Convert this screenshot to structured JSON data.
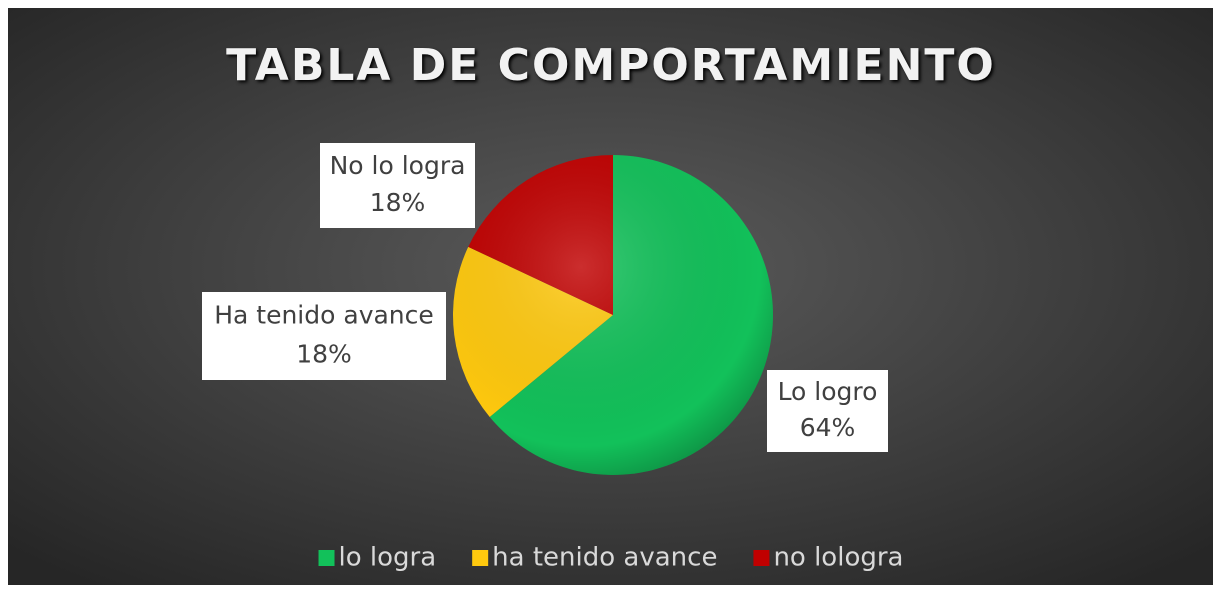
{
  "chart_data": {
    "type": "pie",
    "title": "TABLA DE COMPORTAMIENTO",
    "categories": [
      "lo logra",
      "ha tenido avance",
      "no lologra"
    ],
    "labels": [
      "Lo logro",
      "Ha tenido avance",
      "No lo logra"
    ],
    "values": [
      64,
      18,
      18
    ],
    "value_labels": [
      "64%",
      "18%",
      "18%"
    ],
    "colors": [
      "#12c15a",
      "#ffc90e",
      "#c00000"
    ],
    "legend": "bottom"
  }
}
